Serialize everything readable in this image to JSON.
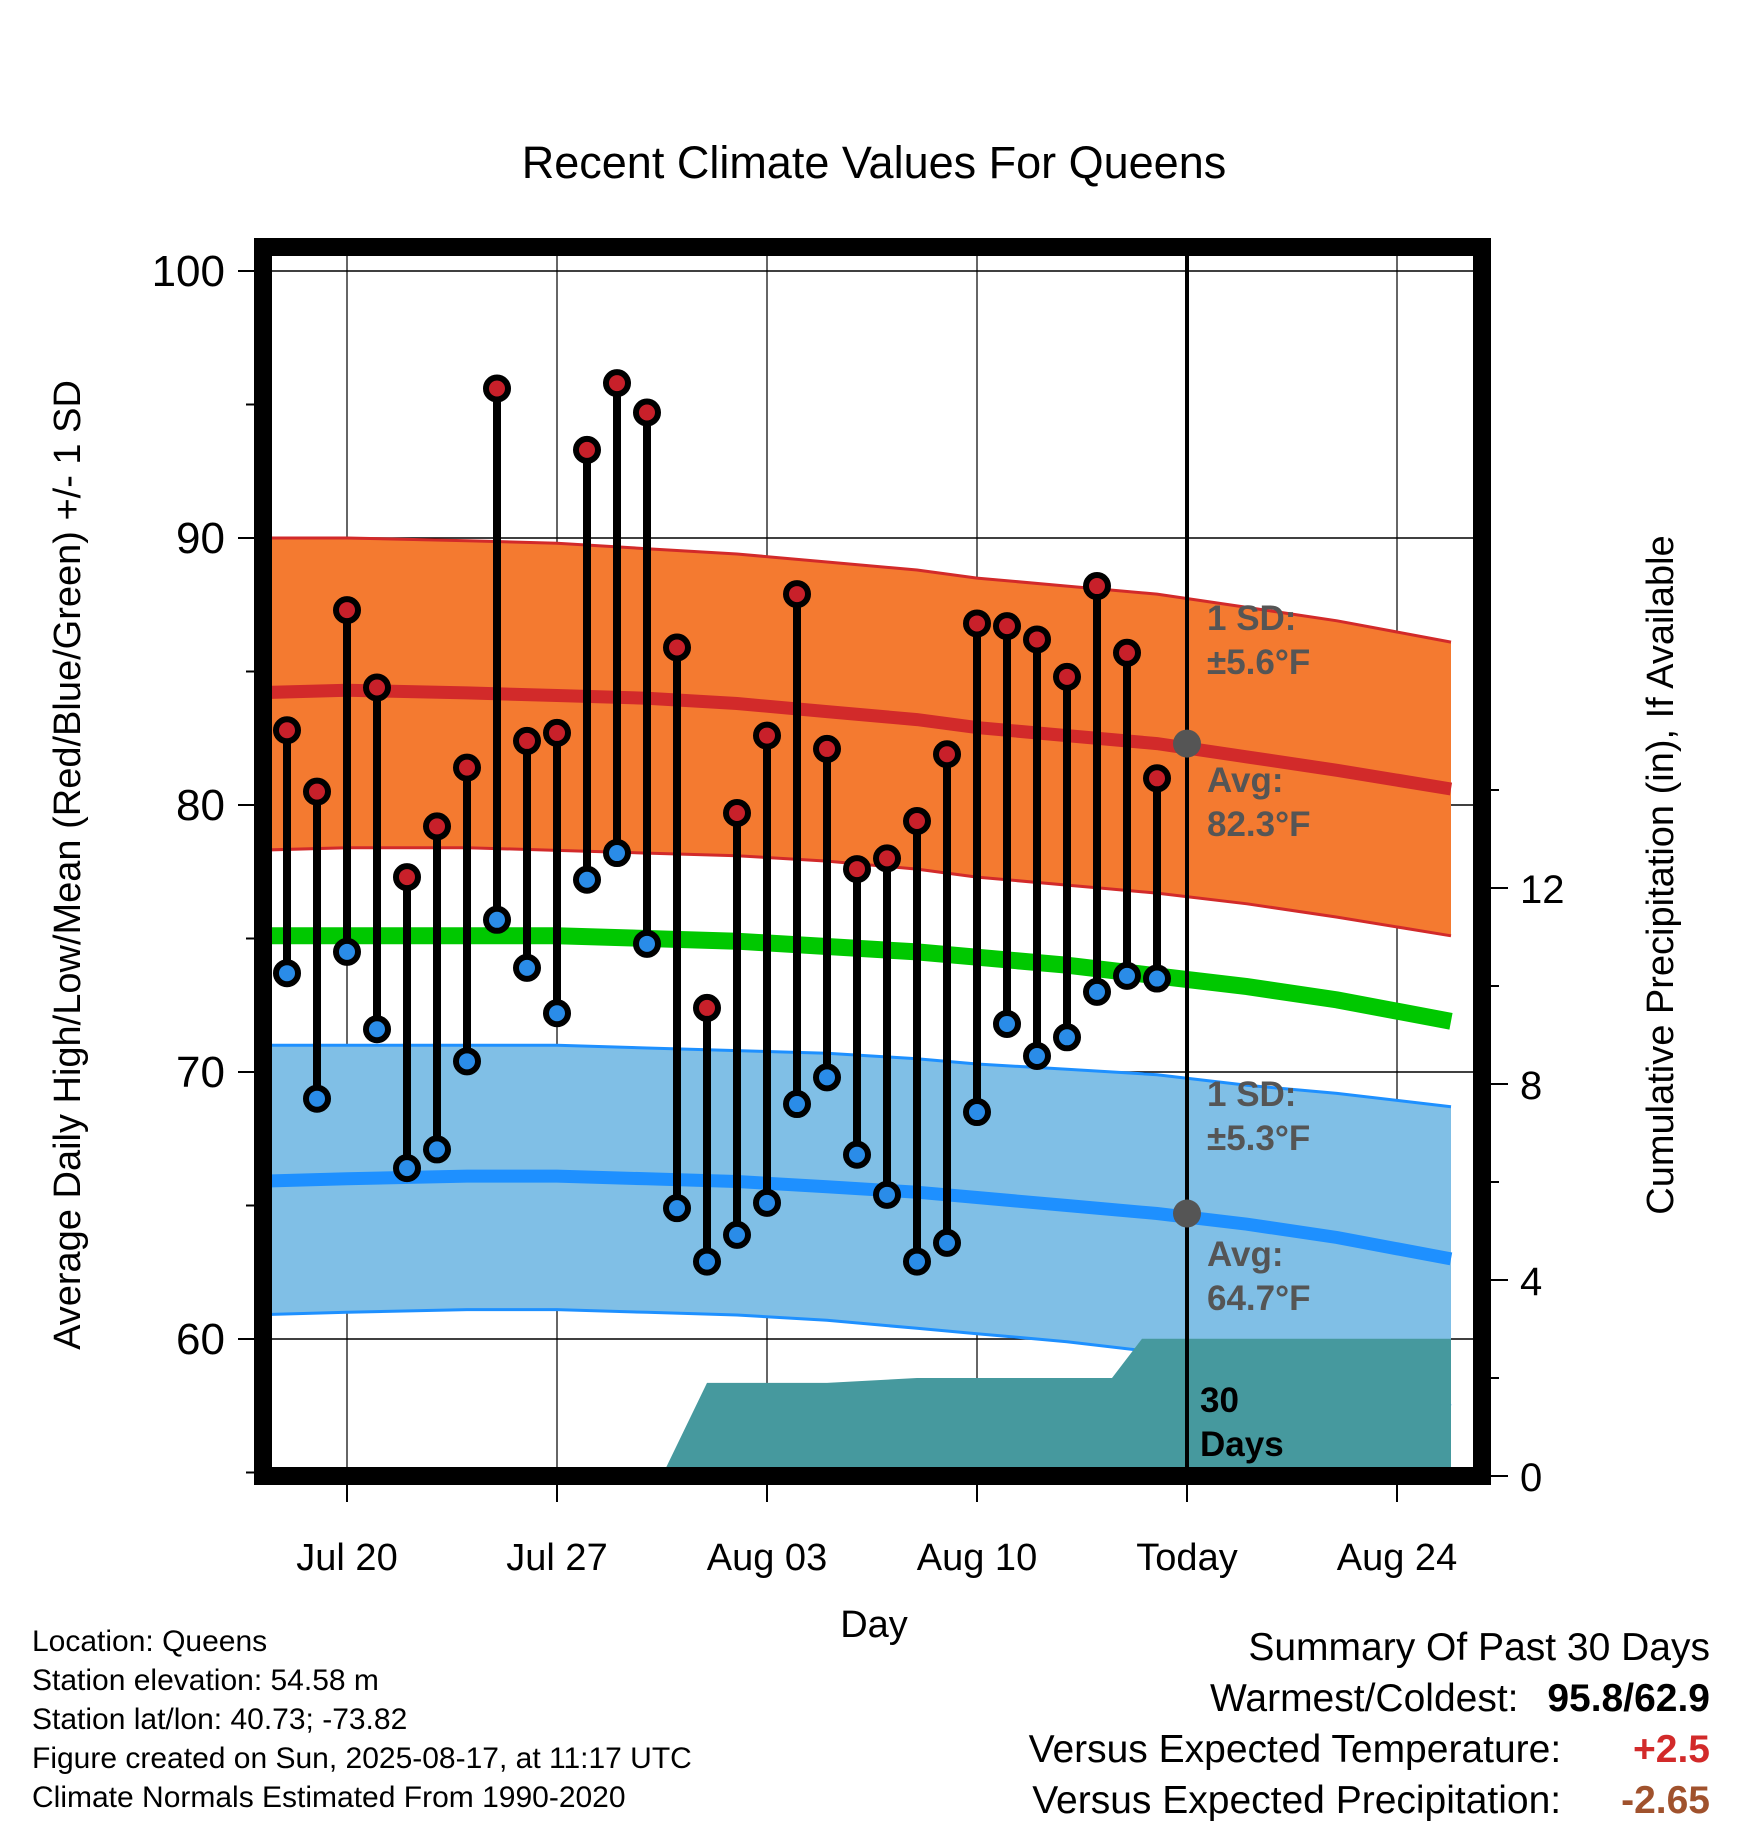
{
  "chart_data": {
    "type": "line",
    "title": "Recent Climate Values For Queens",
    "xlabel": "Day",
    "ylabel": "Average Daily High/Low/Mean (Red/Blue/Green) +/- 1 SD",
    "y2label": "Cumulative Precipitation (in), If Available",
    "ylim": [
      55,
      101
    ],
    "y2lim": [
      0,
      24
    ],
    "y_ticks": [
      "60",
      "70",
      "80",
      "90",
      "100"
    ],
    "y2_ticks": [
      "0",
      "4",
      "8",
      "12"
    ],
    "x_ticks": [
      "Jul 20",
      "Jul 27",
      "Aug 03",
      "Aug 10",
      "Today",
      "Aug 24"
    ],
    "grid": true,
    "days": [
      "Jul 18",
      "Jul 19",
      "Jul 20",
      "Jul 21",
      "Jul 22",
      "Jul 23",
      "Jul 24",
      "Jul 25",
      "Jul 26",
      "Jul 27",
      "Jul 28",
      "Jul 29",
      "Jul 30",
      "Jul 31",
      "Aug 01",
      "Aug 02",
      "Aug 03",
      "Aug 04",
      "Aug 05",
      "Aug 06",
      "Aug 07",
      "Aug 08",
      "Aug 09",
      "Aug 10",
      "Aug 11",
      "Aug 12",
      "Aug 13",
      "Aug 14",
      "Aug 15",
      "Aug 16"
    ],
    "series": [
      {
        "name": "High",
        "values": [
          82.8,
          80.5,
          87.3,
          84.4,
          77.3,
          79.2,
          81.4,
          95.6,
          82.4,
          82.7,
          93.3,
          95.8,
          94.7,
          85.9,
          72.4,
          79.7,
          82.6,
          87.9,
          82.1,
          77.6,
          78.0,
          79.4,
          81.9,
          86.8,
          86.7,
          86.2,
          84.8,
          88.2,
          85.7,
          81.0
        ]
      },
      {
        "name": "Low",
        "values": [
          73.7,
          69.0,
          74.5,
          71.6,
          66.4,
          67.1,
          70.4,
          75.7,
          73.9,
          72.2,
          77.2,
          78.2,
          74.8,
          64.9,
          62.9,
          63.9,
          65.1,
          68.8,
          69.8,
          66.9,
          65.4,
          62.9,
          63.6,
          68.5,
          71.8,
          70.6,
          71.3,
          73.0,
          73.6,
          73.5
        ]
      }
    ],
    "normals": {
      "x_days": [
        -3.2,
        0,
        4,
        7,
        10,
        13,
        16,
        19,
        21,
        24,
        27,
        30,
        33,
        36.8
      ],
      "high": [
        84.2,
        84.3,
        84.2,
        84.1,
        84.0,
        83.8,
        83.5,
        83.2,
        82.9,
        82.6,
        82.3,
        81.8,
        81.3,
        80.6
      ],
      "low": [
        65.9,
        66.0,
        66.1,
        66.1,
        66.0,
        65.9,
        65.7,
        65.5,
        65.3,
        65.0,
        64.7,
        64.3,
        63.8,
        63.0
      ],
      "mean": [
        75.1,
        75.1,
        75.1,
        75.1,
        75.0,
        74.9,
        74.7,
        74.5,
        74.3,
        74.0,
        73.6,
        73.2,
        72.7,
        71.9
      ],
      "high_sd": 5.6,
      "low_sd": 5.3,
      "high_upper": [
        90.0,
        90.0,
        89.9,
        89.8,
        89.6,
        89.4,
        89.1,
        88.8,
        88.5,
        88.2,
        87.9,
        87.4,
        86.9,
        86.1
      ],
      "high_lower": [
        78.3,
        78.4,
        78.4,
        78.3,
        78.2,
        78.1,
        77.9,
        77.6,
        77.3,
        77.0,
        76.7,
        76.3,
        75.8,
        75.1
      ],
      "low_upper": [
        71.0,
        71.0,
        71.0,
        71.0,
        70.9,
        70.8,
        70.7,
        70.5,
        70.3,
        70.1,
        69.9,
        69.5,
        69.2,
        68.7
      ],
      "low_lower": [
        60.9,
        61.0,
        61.1,
        61.1,
        61.0,
        60.9,
        60.7,
        60.4,
        60.2,
        59.9,
        59.5,
        59.1,
        58.6,
        57.5
      ]
    },
    "precip_cumulative": {
      "x_days": [
        10.5,
        12.0,
        12.5,
        16.0,
        19.0,
        22.0,
        25.5,
        26.5,
        27.5,
        30.0,
        33.0,
        36.8
      ],
      "values": [
        0,
        1.9,
        1.9,
        1.9,
        2.0,
        2.0,
        2.0,
        2.8,
        2.8,
        2.8,
        2.8,
        2.8
      ]
    },
    "annotations": {
      "high_sd_title": "1 SD:",
      "high_sd_value": "±5.6°F",
      "high_avg_title": "Avg:",
      "high_avg_value": "82.3°F",
      "low_sd_title": "1 SD:",
      "low_sd_value": "±5.3°F",
      "low_avg_title": "Avg:",
      "low_avg_value": "64.7°F",
      "precip_period_1": "30",
      "precip_period_2": "Days"
    },
    "colors": {
      "high_band": "#f47a30",
      "high_line": "#d22a2a",
      "low_band": "#80bfe6",
      "low_line": "#1e90ff",
      "mean_line": "#00c800",
      "precip": "#46999e",
      "high_dot": "#c8202a",
      "low_dot": "#2a8ce8",
      "annotation": "#555555"
    }
  },
  "meta": {
    "location": "Location: Queens",
    "elevation": "Station elevation: 54.58 m",
    "latlon": "Station lat/lon: 40.73; -73.82",
    "created": "Figure created on Sun, 2025-08-17, at 11:17 UTC",
    "normals": "Climate Normals Estimated From 1990-2020"
  },
  "summary": {
    "title": "Summary Of Past 30 Days",
    "warm_cold_label": "Warmest/Coldest:",
    "warmest": "95.8",
    "separator": "/",
    "coldest": "62.9",
    "temp_label": "Versus Expected Temperature:",
    "temp_value": "+2.5",
    "temp_color": "#d22a2a",
    "precip_label": "Versus Expected Precipitation:",
    "precip_value": "-2.65",
    "precip_color": "#a0522d"
  }
}
